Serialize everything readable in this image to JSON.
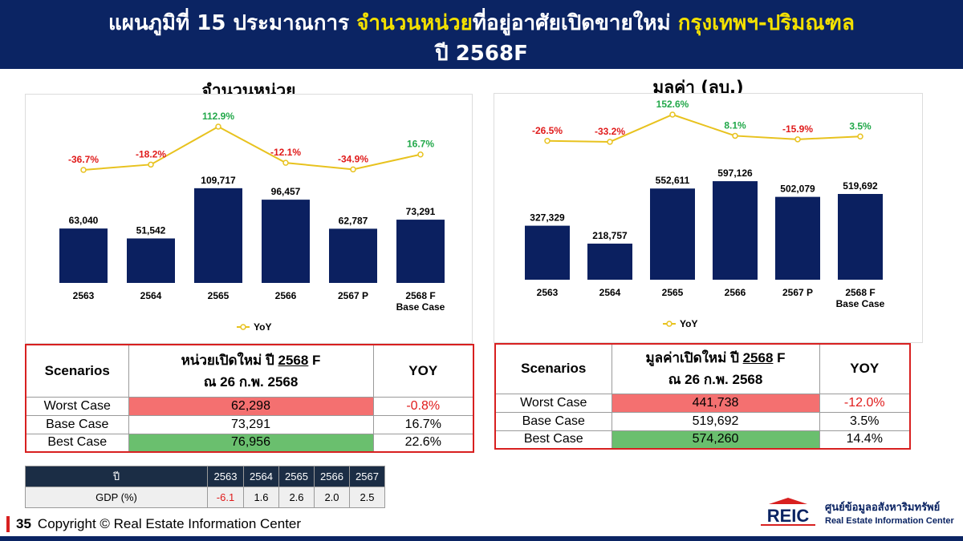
{
  "header": {
    "line1_part1": "แผนภูมิที่ 15 ประมาณการ ",
    "line1_highlight1": "จำนวนหน่วย",
    "line1_part2": "ที่อยู่อาศัยเปิดขายใหม่ ",
    "line1_highlight2": "กรุงเทพฯ-ปริมณฑล",
    "line2": "ปี  2568F",
    "highlight_color": "#f3e000",
    "background_color": "#0b2463"
  },
  "chart_data": [
    {
      "type": "bar",
      "title": "จำนวนหน่วย",
      "categories": [
        "2563",
        "2564",
        "2565",
        "2566",
        "2567 P",
        "2568 F Base Case"
      ],
      "values": [
        63040,
        51542,
        109717,
        96457,
        62787,
        73291
      ],
      "value_labels": [
        "63,040",
        "51,542",
        "109,717",
        "96,457",
        "62,787",
        "73,291"
      ],
      "ylim": [
        0,
        130000
      ],
      "bar_color": "#0b2060",
      "yoy": {
        "name": "YoY",
        "values": [
          -36.7,
          -18.2,
          112.9,
          -12.1,
          -34.9,
          16.7
        ],
        "labels": [
          "-36.7%",
          "-18.2%",
          "112.9%",
          "-12.1%",
          "-34.9%",
          "16.7%"
        ],
        "ylim": [
          -60,
          130
        ],
        "line_color": "#e8c21e",
        "positive_color": "#22a84a",
        "negative_color": "#e01b1b"
      },
      "legend": "bottom-center"
    },
    {
      "type": "bar",
      "title": "มูลค่า (ลบ.)",
      "categories": [
        "2563",
        "2564",
        "2565",
        "2566",
        "2567 P",
        "2568 F Base Case"
      ],
      "values": [
        327329,
        218757,
        552611,
        597126,
        502079,
        519692
      ],
      "value_labels": [
        "327,329",
        "218,757",
        "552,611",
        "597,126",
        "502,079",
        "519,692"
      ],
      "ylim": [
        0,
        680000
      ],
      "bar_color": "#0b2060",
      "yoy": {
        "name": "YoY",
        "values": [
          -26.5,
          -33.2,
          152.6,
          8.1,
          -15.9,
          3.5
        ],
        "labels": [
          "-26.5%",
          "-33.2%",
          "152.6%",
          "8.1%",
          "-15.9%",
          "3.5%"
        ],
        "ylim": [
          -150,
          170
        ],
        "line_color": "#e8c21e",
        "positive_color": "#22a84a",
        "negative_color": "#e01b1b"
      },
      "legend": "bottom-center"
    }
  ],
  "units_table": {
    "h_scenarios": "Scenarios",
    "h_main_1": "หน่วยเปิดใหม่ ปี ",
    "h_main_year": "2568",
    "h_main_2": " F",
    "h_main_date": "ณ 26 ก.พ. 2568",
    "h_yoy": "YOY",
    "rows": [
      {
        "name": "Worst Case",
        "value": "62,298",
        "yoy": "-0.8%"
      },
      {
        "name": "Base Case",
        "value": "73,291",
        "yoy": "16.7%"
      },
      {
        "name": "Best Case",
        "value": "76,956",
        "yoy": "22.6%"
      }
    ]
  },
  "value_table": {
    "h_scenarios": "Scenarios",
    "h_main_1": "มูลค่าเปิดใหม่ ปี ",
    "h_main_year": "2568",
    "h_main_2": " F",
    "h_main_date": "ณ 26 ก.พ. 2568",
    "h_yoy": "YOY",
    "rows": [
      {
        "name": "Worst Case",
        "value": "441,738",
        "yoy": "-12.0%"
      },
      {
        "name": "Base Case",
        "value": "519,692",
        "yoy": "3.5%"
      },
      {
        "name": "Best Case",
        "value": "574,260",
        "yoy": "14.4%"
      }
    ]
  },
  "gdp_table": {
    "year_label": "ปี",
    "years": [
      "2563",
      "2564",
      "2565",
      "2566",
      "2567"
    ],
    "row_label": "GDP (%)",
    "values": [
      "-6.1",
      "1.6",
      "2.6",
      "2.0",
      "2.5"
    ]
  },
  "footer": {
    "page": "35",
    "copyright": "Copyright © Real Estate Information Center"
  },
  "logo": {
    "mark_text": "REIC",
    "thai_name": "ศูนย์ข้อมูลอสังหาริมทรัพย์",
    "english_name": "Real Estate Information Center"
  }
}
